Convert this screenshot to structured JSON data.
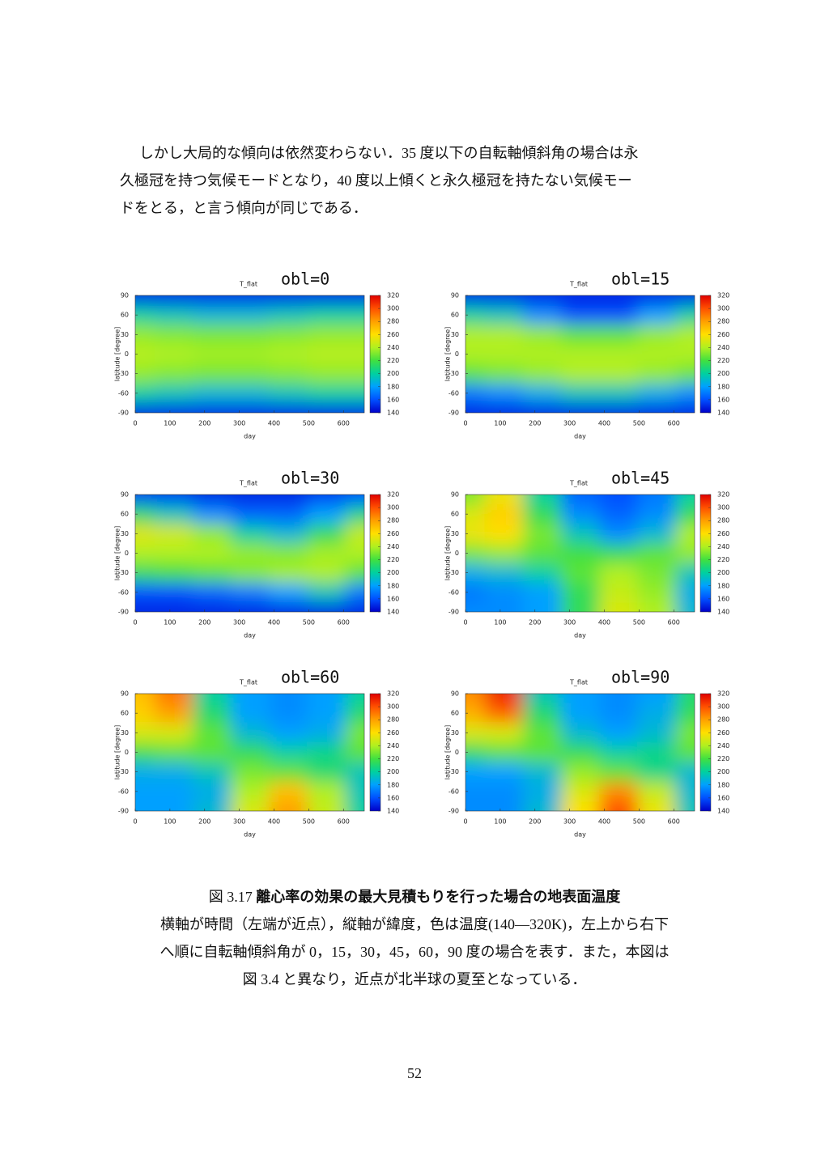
{
  "document": {
    "paragraph": [
      "しかし大局的な傾向は依然変わらない．35 度以下の自転軸傾斜角の場合は永",
      "久極冠を持つ気候モードとなり，40 度以上傾くと永久極冠を持たない気候モー",
      "ドをとる，と言う傾向が同じである．"
    ],
    "caption": {
      "label": "図 3.17",
      "title": "離心率の効果の最大見積もりを行った場合の地表面温度",
      "lines": [
        "横軸が時間（左端が近点），縦軸が緯度，色は温度(140—320K)，左上から右下",
        "へ順に自転軸傾斜角が 0，15，30，45，60，90 度の場合を表す．また，本図は",
        "図 3.4 と異なり，近点が北半球の夏至となっている．"
      ]
    },
    "page_number": "52"
  },
  "chart_data": [
    {
      "type": "heatmap",
      "title": "obl=0",
      "subtitle": "T_flat",
      "xlabel": "day",
      "ylabel": "latitude [degree]",
      "x": [
        0,
        110,
        220,
        330,
        440,
        550,
        660
      ],
      "y": [
        90,
        60,
        30,
        0,
        -30,
        -60,
        -90
      ],
      "z": [
        [
          150,
          150,
          150,
          150,
          150,
          150,
          150
        ],
        [
          200,
          195,
          190,
          190,
          195,
          200,
          200
        ],
        [
          235,
          232,
          230,
          230,
          232,
          235,
          235
        ],
        [
          242,
          240,
          238,
          238,
          240,
          242,
          242
        ],
        [
          235,
          232,
          230,
          230,
          232,
          235,
          235
        ],
        [
          200,
          195,
          190,
          190,
          195,
          200,
          200
        ],
        [
          150,
          150,
          150,
          150,
          150,
          150,
          150
        ]
      ],
      "xlim": [
        0,
        660
      ],
      "ylim": [
        -90,
        90
      ],
      "xticks": [
        0,
        100,
        200,
        300,
        400,
        500,
        600
      ],
      "yticks": [
        -90,
        -60,
        -30,
        0,
        30,
        60,
        90
      ],
      "clim": [
        140,
        320
      ],
      "cticks": [
        140,
        160,
        180,
        200,
        220,
        240,
        260,
        280,
        300,
        320
      ],
      "colormap": [
        "#0000c8",
        "#0050ff",
        "#00a0ff",
        "#00d0a0",
        "#40e040",
        "#b0f020",
        "#ffe000",
        "#ffa000",
        "#ff5000",
        "#e00000"
      ]
    },
    {
      "type": "heatmap",
      "title": "obl=15",
      "subtitle": "T_flat",
      "xlabel": "day",
      "ylabel": "latitude [degree]",
      "x": [
        0,
        110,
        220,
        330,
        440,
        550,
        660
      ],
      "y": [
        90,
        60,
        30,
        0,
        -30,
        -60,
        -90
      ],
      "z": [
        [
          150,
          150,
          150,
          150,
          150,
          150,
          150
        ],
        [
          200,
          195,
          175,
          160,
          160,
          180,
          200
        ],
        [
          240,
          240,
          235,
          225,
          225,
          235,
          240
        ],
        [
          240,
          240,
          240,
          240,
          240,
          240,
          240
        ],
        [
          225,
          230,
          235,
          240,
          240,
          235,
          228
        ],
        [
          170,
          175,
          185,
          195,
          195,
          185,
          175
        ],
        [
          150,
          150,
          150,
          150,
          150,
          150,
          150
        ]
      ],
      "xlim": [
        0,
        660
      ],
      "ylim": [
        -90,
        90
      ],
      "xticks": [
        0,
        100,
        200,
        300,
        400,
        500,
        600
      ],
      "yticks": [
        -90,
        -60,
        -30,
        0,
        30,
        60,
        90
      ],
      "clim": [
        140,
        320
      ],
      "cticks": [
        140,
        160,
        180,
        200,
        220,
        240,
        260,
        280,
        300,
        320
      ],
      "colormap": [
        "#0000c8",
        "#0050ff",
        "#00a0ff",
        "#00d0a0",
        "#40e040",
        "#b0f020",
        "#ffe000",
        "#ffa000",
        "#ff5000",
        "#e00000"
      ]
    },
    {
      "type": "heatmap",
      "title": "obl=30",
      "subtitle": "T_flat",
      "xlabel": "day",
      "ylabel": "latitude [degree]",
      "x": [
        0,
        110,
        220,
        330,
        440,
        550,
        660
      ],
      "y": [
        90,
        60,
        30,
        0,
        -30,
        -60,
        -90
      ],
      "z": [
        [
          155,
          155,
          150,
          150,
          150,
          155,
          160
        ],
        [
          210,
          195,
          175,
          165,
          165,
          180,
          205
        ],
        [
          252,
          248,
          235,
          200,
          190,
          215,
          245
        ],
        [
          240,
          240,
          240,
          235,
          232,
          238,
          240
        ],
        [
          215,
          220,
          225,
          232,
          238,
          240,
          225
        ],
        [
          160,
          160,
          165,
          170,
          180,
          195,
          170
        ],
        [
          150,
          150,
          150,
          150,
          150,
          150,
          150
        ]
      ],
      "xlim": [
        0,
        660
      ],
      "ylim": [
        -90,
        90
      ],
      "xticks": [
        0,
        100,
        200,
        300,
        400,
        500,
        600
      ],
      "yticks": [
        -90,
        -60,
        -30,
        0,
        30,
        60,
        90
      ],
      "clim": [
        140,
        320
      ],
      "cticks": [
        140,
        160,
        180,
        200,
        220,
        240,
        260,
        280,
        300,
        320
      ],
      "colormap": [
        "#0000c8",
        "#0050ff",
        "#00a0ff",
        "#00d0a0",
        "#40e040",
        "#b0f020",
        "#ffe000",
        "#ffa000",
        "#ff5000",
        "#e00000"
      ]
    },
    {
      "type": "heatmap",
      "title": "obl=45",
      "subtitle": "T_flat",
      "xlabel": "day",
      "ylabel": "latitude [degree]",
      "x": [
        0,
        110,
        220,
        330,
        440,
        550,
        660
      ],
      "y": [
        90,
        60,
        30,
        0,
        -30,
        -60,
        -90
      ],
      "z": [
        [
          230,
          255,
          200,
          165,
          160,
          170,
          200
        ],
        [
          250,
          265,
          215,
          175,
          165,
          175,
          215
        ],
        [
          255,
          260,
          230,
          195,
          175,
          190,
          240
        ],
        [
          230,
          235,
          225,
          220,
          215,
          225,
          235
        ],
        [
          185,
          190,
          200,
          225,
          240,
          230,
          195
        ],
        [
          170,
          175,
          180,
          215,
          245,
          235,
          185
        ],
        [
          175,
          175,
          180,
          215,
          250,
          240,
          190
        ]
      ],
      "xlim": [
        0,
        660
      ],
      "ylim": [
        -90,
        90
      ],
      "xticks": [
        0,
        100,
        200,
        300,
        400,
        500,
        600
      ],
      "yticks": [
        -90,
        -60,
        -30,
        0,
        30,
        60,
        90
      ],
      "clim": [
        140,
        320
      ],
      "cticks": [
        140,
        160,
        180,
        200,
        220,
        240,
        260,
        280,
        300,
        320
      ],
      "colormap": [
        "#0000c8",
        "#0050ff",
        "#00a0ff",
        "#00d0a0",
        "#40e040",
        "#b0f020",
        "#ffe000",
        "#ffa000",
        "#ff5000",
        "#e00000"
      ]
    },
    {
      "type": "heatmap",
      "title": "obl=60",
      "subtitle": "T_flat",
      "xlabel": "day",
      "ylabel": "latitude [degree]",
      "x": [
        0,
        110,
        220,
        330,
        440,
        550,
        660
      ],
      "y": [
        90,
        60,
        30,
        0,
        -30,
        -60,
        -90
      ],
      "z": [
        [
          270,
          290,
          200,
          180,
          175,
          180,
          200
        ],
        [
          265,
          280,
          210,
          180,
          175,
          180,
          210
        ],
        [
          250,
          250,
          225,
          190,
          180,
          185,
          230
        ],
        [
          220,
          225,
          225,
          215,
          200,
          205,
          225
        ],
        [
          185,
          185,
          195,
          230,
          225,
          210,
          195
        ],
        [
          180,
          180,
          185,
          240,
          270,
          240,
          195
        ],
        [
          180,
          180,
          190,
          250,
          280,
          245,
          200
        ]
      ],
      "xlim": [
        0,
        660
      ],
      "ylim": [
        -90,
        90
      ],
      "xticks": [
        0,
        100,
        200,
        300,
        400,
        500,
        600
      ],
      "yticks": [
        -90,
        -60,
        -30,
        0,
        30,
        60,
        90
      ],
      "clim": [
        140,
        320
      ],
      "cticks": [
        140,
        160,
        180,
        200,
        220,
        240,
        260,
        280,
        300,
        320
      ],
      "colormap": [
        "#0000c8",
        "#0050ff",
        "#00a0ff",
        "#00d0a0",
        "#40e040",
        "#b0f020",
        "#ffe000",
        "#ffa000",
        "#ff5000",
        "#e00000"
      ]
    },
    {
      "type": "heatmap",
      "title": "obl=90",
      "subtitle": "T_flat",
      "xlabel": "day",
      "ylabel": "latitude [degree]",
      "x": [
        0,
        110,
        220,
        330,
        440,
        550,
        660
      ],
      "y": [
        90,
        60,
        30,
        0,
        -30,
        -60,
        -90
      ],
      "z": [
        [
          285,
          310,
          195,
          180,
          175,
          180,
          210
        ],
        [
          275,
          295,
          210,
          180,
          175,
          185,
          215
        ],
        [
          250,
          250,
          225,
          190,
          180,
          190,
          230
        ],
        [
          215,
          225,
          225,
          215,
          200,
          205,
          225
        ],
        [
          180,
          180,
          190,
          235,
          225,
          205,
          190
        ],
        [
          175,
          175,
          185,
          250,
          285,
          245,
          190
        ],
        [
          175,
          175,
          190,
          260,
          300,
          255,
          195
        ]
      ],
      "xlim": [
        0,
        660
      ],
      "ylim": [
        -90,
        90
      ],
      "xticks": [
        0,
        100,
        200,
        300,
        400,
        500,
        600
      ],
      "yticks": [
        -90,
        -60,
        -30,
        0,
        30,
        60,
        90
      ],
      "clim": [
        140,
        320
      ],
      "cticks": [
        140,
        160,
        180,
        200,
        220,
        240,
        260,
        280,
        300,
        320
      ],
      "colormap": [
        "#0000c8",
        "#0050ff",
        "#00a0ff",
        "#00d0a0",
        "#40e040",
        "#b0f020",
        "#ffe000",
        "#ffa000",
        "#ff5000",
        "#e00000"
      ]
    }
  ]
}
